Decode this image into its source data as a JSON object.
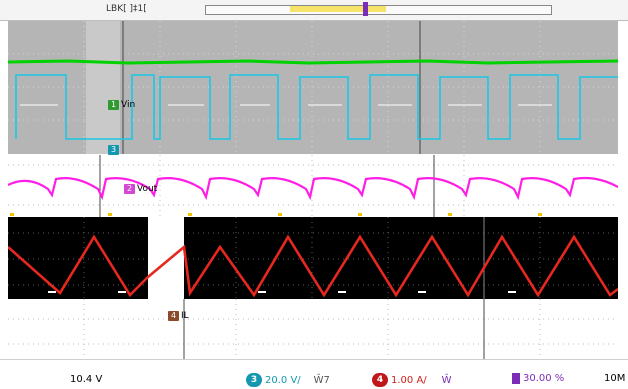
{
  "toolbar": {
    "label": "LBK[ ]‡1["
  },
  "channels": {
    "vin": {
      "number": "1",
      "label": "Vin",
      "color": "#00d200",
      "tag_color": "#2f9a2f"
    },
    "ch3": {
      "number": "3",
      "label": "",
      "color": "#19c8e6",
      "tag_color": "#1597b0"
    },
    "vout": {
      "number": "2",
      "label": "Vout",
      "color": "#ff1ee6",
      "tag_color": "#d248d2"
    },
    "il": {
      "number": "4",
      "label": "IL",
      "color": "#e6281e",
      "tag_color": "#8a4b2a"
    }
  },
  "status": {
    "left_value": "10.4 V",
    "ch3_number": "3",
    "ch3_scale": "20.0 V/",
    "ch3_extra": "Ŵ7",
    "ch4_number": "4",
    "ch4_scale": "1.00 A/",
    "ch4_extra": "Ŵ",
    "trigger_value": "30.00 %",
    "timebase": "10M"
  }
}
